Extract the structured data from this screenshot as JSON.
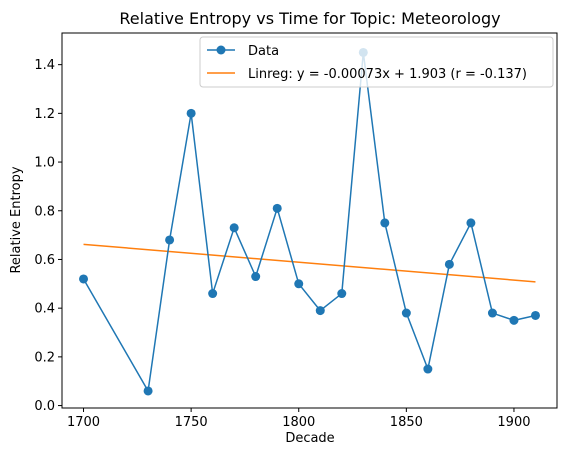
{
  "chart_data": {
    "type": "line",
    "title": "Relative Entropy vs Time for Topic: Meteorology",
    "xlabel": "Decade",
    "ylabel": "Relative Entropy",
    "xlim": [
      1690,
      1920
    ],
    "ylim": [
      -0.01,
      1.53
    ],
    "xticks": [
      1700,
      1750,
      1800,
      1850,
      1900
    ],
    "yticks": [
      0.0,
      0.2,
      0.4,
      0.6,
      0.8,
      1.0,
      1.2,
      1.4
    ],
    "grid": false,
    "legend_position": "top-right",
    "series": [
      {
        "name": "Data",
        "color": "#1f77b4",
        "marker": "circle",
        "x": [
          1700,
          1730,
          1740,
          1750,
          1760,
          1770,
          1780,
          1790,
          1800,
          1810,
          1820,
          1830,
          1840,
          1850,
          1860,
          1870,
          1880,
          1890,
          1900,
          1910
        ],
        "y": [
          0.52,
          0.06,
          0.68,
          1.2,
          0.46,
          0.73,
          0.53,
          0.81,
          0.5,
          0.39,
          0.46,
          1.45,
          0.75,
          0.38,
          0.15,
          0.58,
          0.75,
          0.38,
          0.35,
          0.37
        ]
      },
      {
        "name": "Linreg: y = -0.00073x + 1.903 (r = -0.137)",
        "color": "#ff7f0e",
        "x": [
          1700,
          1910
        ],
        "y": [
          0.662,
          0.508
        ]
      }
    ]
  }
}
